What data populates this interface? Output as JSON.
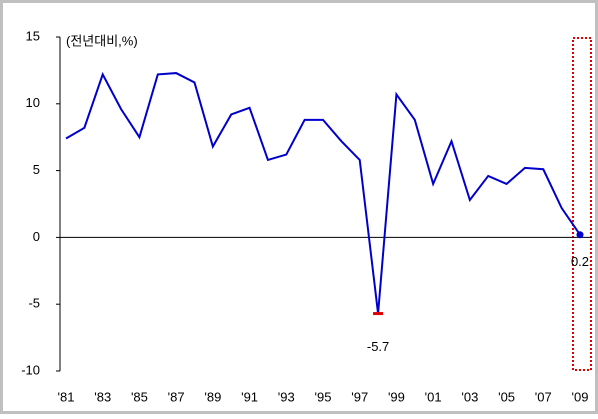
{
  "chart_data": {
    "type": "line",
    "annotations": [
      "(전년대비,%)"
    ],
    "categories": [
      "'81",
      null,
      "'83",
      null,
      "'85",
      null,
      "'87",
      null,
      "'89",
      null,
      "'91",
      null,
      "'93",
      null,
      "'95",
      null,
      "'97",
      null,
      "'99",
      null,
      "'01",
      null,
      "'03",
      null,
      "'05",
      null,
      "'07",
      null,
      "'09"
    ],
    "series": [
      {
        "color": "#0000cc",
        "values": [
          7.4,
          8.2,
          12.2,
          9.6,
          7.5,
          12.2,
          12.3,
          11.6,
          6.8,
          9.2,
          9.7,
          5.8,
          6.2,
          8.8,
          8.8,
          7.2,
          5.8,
          -5.7,
          10.7,
          8.8,
          4.0,
          7.2,
          2.8,
          4.6,
          4.0,
          5.2,
          5.1,
          2.2,
          0.2
        ],
        "value_labels": [
          null,
          null,
          null,
          null,
          null,
          null,
          null,
          null,
          null,
          null,
          null,
          null,
          null,
          null,
          null,
          null,
          null,
          "-5.7",
          null,
          null,
          null,
          null,
          null,
          null,
          null,
          null,
          null,
          null,
          "0.2"
        ]
      }
    ],
    "ylim": [
      -10,
      15
    ],
    "yticks": [
      -10,
      -5,
      0,
      5,
      10,
      15
    ]
  }
}
